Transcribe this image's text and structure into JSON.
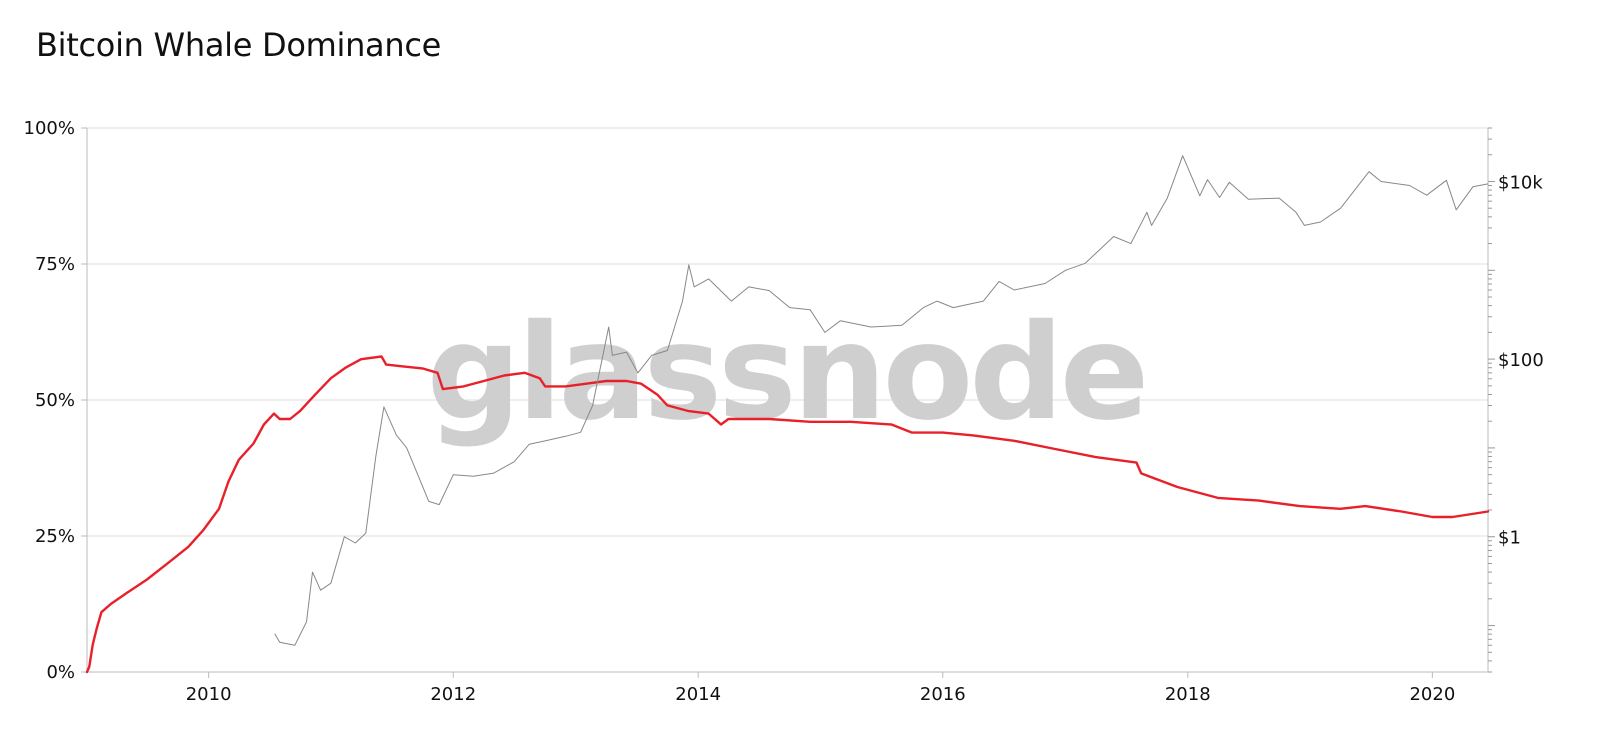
{
  "title": "Bitcoin Whale Dominance",
  "watermark": "glassnode",
  "colors": {
    "dominance": "#e8202a",
    "price": "#888888",
    "grid": "#dddddd",
    "axis": "#bbbbbb"
  },
  "chart_data": {
    "type": "line",
    "title": "Bitcoin Whale Dominance",
    "xlabel": "",
    "ylabel": "",
    "x_axis": {
      "type": "date",
      "range": [
        "2009-01-03",
        "2020-06-15"
      ],
      "ticks": [
        "2010",
        "2012",
        "2014",
        "2016",
        "2018",
        "2020"
      ]
    },
    "y_left": {
      "range": [
        0,
        100
      ],
      "unit": "%",
      "ticks": [
        "0%",
        "25%",
        "50%",
        "75%",
        "100%"
      ]
    },
    "y_right": {
      "scale": "log",
      "range": [
        0.03,
        40000
      ],
      "ticks": [
        {
          "value": 1,
          "label": "$1"
        },
        {
          "value": 100,
          "label": "$100"
        },
        {
          "value": 10000,
          "label": "$10k"
        }
      ]
    },
    "grid": true,
    "legend": "none",
    "series": [
      {
        "axis": "left",
        "color": "#e8202a",
        "values": [
          [
            "2009-01-03",
            0
          ],
          [
            "2009-01-10",
            1
          ],
          [
            "2009-01-20",
            5
          ],
          [
            "2009-02-01",
            8
          ],
          [
            "2009-02-15",
            11
          ],
          [
            "2009-03-15",
            12.5
          ],
          [
            "2009-05-01",
            14.5
          ],
          [
            "2009-07-01",
            17
          ],
          [
            "2009-09-01",
            20
          ],
          [
            "2009-11-01",
            23
          ],
          [
            "2009-12-15",
            26
          ],
          [
            "2010-02-01",
            30
          ],
          [
            "2010-03-01",
            35
          ],
          [
            "2010-04-01",
            39
          ],
          [
            "2010-05-15",
            42
          ],
          [
            "2010-06-15",
            45.5
          ],
          [
            "2010-07-15",
            47.5
          ],
          [
            "2010-08-01",
            46.5
          ],
          [
            "2010-09-01",
            46.5
          ],
          [
            "2010-10-01",
            48
          ],
          [
            "2010-11-15",
            51
          ],
          [
            "2011-01-01",
            54
          ],
          [
            "2011-02-15",
            56
          ],
          [
            "2011-04-01",
            57.5
          ],
          [
            "2011-06-01",
            58
          ],
          [
            "2011-06-15",
            56.5
          ],
          [
            "2011-08-01",
            56.2
          ],
          [
            "2011-10-01",
            55.8
          ],
          [
            "2011-11-15",
            55
          ],
          [
            "2011-12-01",
            52
          ],
          [
            "2012-02-01",
            52.5
          ],
          [
            "2012-04-01",
            53.5
          ],
          [
            "2012-06-01",
            54.5
          ],
          [
            "2012-08-01",
            55
          ],
          [
            "2012-09-15",
            54
          ],
          [
            "2012-10-01",
            52.5
          ],
          [
            "2012-12-01",
            52.5
          ],
          [
            "2013-02-01",
            53
          ],
          [
            "2013-04-01",
            53.5
          ],
          [
            "2013-06-01",
            53.5
          ],
          [
            "2013-07-15",
            53
          ],
          [
            "2013-09-01",
            51
          ],
          [
            "2013-10-01",
            49
          ],
          [
            "2013-12-01",
            48
          ],
          [
            "2014-02-01",
            47.5
          ],
          [
            "2014-03-01",
            46
          ],
          [
            "2014-03-10",
            45.5
          ],
          [
            "2014-04-01",
            46.5
          ],
          [
            "2014-08-01",
            46.5
          ],
          [
            "2014-12-01",
            46
          ],
          [
            "2015-04-01",
            46
          ],
          [
            "2015-08-01",
            45.5
          ],
          [
            "2015-10-01",
            44
          ],
          [
            "2016-01-01",
            44
          ],
          [
            "2016-04-01",
            43.5
          ],
          [
            "2016-08-01",
            42.5
          ],
          [
            "2016-12-01",
            41
          ],
          [
            "2017-04-01",
            39.5
          ],
          [
            "2017-08-01",
            38.5
          ],
          [
            "2017-08-15",
            36.5
          ],
          [
            "2017-12-01",
            34
          ],
          [
            "2018-04-01",
            32
          ],
          [
            "2018-08-01",
            31.5
          ],
          [
            "2018-12-01",
            30.5
          ],
          [
            "2019-04-01",
            30
          ],
          [
            "2019-06-15",
            30.5
          ],
          [
            "2019-10-01",
            29.5
          ],
          [
            "2020-01-01",
            28.5
          ],
          [
            "2020-03-01",
            28.5
          ],
          [
            "2020-06-15",
            29.5
          ]
        ]
      },
      {
        "axis": "right",
        "color": "#888888",
        "values": [
          [
            "2010-07-18",
            0.08
          ],
          [
            "2010-08-01",
            0.065
          ],
          [
            "2010-09-15",
            0.06
          ],
          [
            "2010-10-20",
            0.11
          ],
          [
            "2010-11-07",
            0.4
          ],
          [
            "2010-12-01",
            0.25
          ],
          [
            "2011-01-01",
            0.3
          ],
          [
            "2011-02-10",
            1.0
          ],
          [
            "2011-03-15",
            0.85
          ],
          [
            "2011-04-15",
            1.1
          ],
          [
            "2011-05-15",
            8
          ],
          [
            "2011-06-08",
            29
          ],
          [
            "2011-07-15",
            14
          ],
          [
            "2011-08-15",
            10
          ],
          [
            "2011-10-20",
            2.5
          ],
          [
            "2011-11-20",
            2.3
          ],
          [
            "2012-01-01",
            5
          ],
          [
            "2012-03-01",
            4.8
          ],
          [
            "2012-05-01",
            5.2
          ],
          [
            "2012-07-01",
            7
          ],
          [
            "2012-08-15",
            11
          ],
          [
            "2012-10-01",
            12
          ],
          [
            "2012-12-01",
            13.5
          ],
          [
            "2013-01-15",
            15
          ],
          [
            "2013-02-20",
            30
          ],
          [
            "2013-04-09",
            230
          ],
          [
            "2013-04-20",
            110
          ],
          [
            "2013-06-01",
            120
          ],
          [
            "2013-07-05",
            70
          ],
          [
            "2013-08-15",
            110
          ],
          [
            "2013-10-01",
            125
          ],
          [
            "2013-11-15",
            450
          ],
          [
            "2013-12-04",
            1150
          ],
          [
            "2013-12-20",
            650
          ],
          [
            "2014-02-01",
            800
          ],
          [
            "2014-04-10",
            450
          ],
          [
            "2014-06-01",
            650
          ],
          [
            "2014-08-01",
            590
          ],
          [
            "2014-10-01",
            380
          ],
          [
            "2014-12-01",
            360
          ],
          [
            "2015-01-14",
            200
          ],
          [
            "2015-03-01",
            270
          ],
          [
            "2015-06-01",
            230
          ],
          [
            "2015-09-01",
            240
          ],
          [
            "2015-11-04",
            380
          ],
          [
            "2015-12-15",
            450
          ],
          [
            "2016-02-01",
            380
          ],
          [
            "2016-05-01",
            450
          ],
          [
            "2016-06-17",
            750
          ],
          [
            "2016-08-01",
            600
          ],
          [
            "2016-11-01",
            710
          ],
          [
            "2017-01-01",
            1000
          ],
          [
            "2017-03-01",
            1200
          ],
          [
            "2017-05-25",
            2400
          ],
          [
            "2017-07-15",
            2000
          ],
          [
            "2017-09-01",
            4500
          ],
          [
            "2017-09-15",
            3200
          ],
          [
            "2017-11-01",
            6500
          ],
          [
            "2017-12-17",
            19500
          ],
          [
            "2018-02-06",
            6900
          ],
          [
            "2018-03-01",
            10500
          ],
          [
            "2018-04-06",
            6600
          ],
          [
            "2018-05-05",
            9800
          ],
          [
            "2018-07-01",
            6300
          ],
          [
            "2018-10-01",
            6500
          ],
          [
            "2018-11-20",
            4500
          ],
          [
            "2018-12-15",
            3200
          ],
          [
            "2019-02-01",
            3500
          ],
          [
            "2019-04-02",
            5000
          ],
          [
            "2019-06-26",
            12900
          ],
          [
            "2019-08-01",
            10000
          ],
          [
            "2019-10-25",
            9000
          ],
          [
            "2019-12-15",
            7000
          ],
          [
            "2020-02-12",
            10300
          ],
          [
            "2020-03-12",
            4800
          ],
          [
            "2020-05-01",
            8700
          ],
          [
            "2020-06-15",
            9400
          ]
        ]
      }
    ]
  }
}
